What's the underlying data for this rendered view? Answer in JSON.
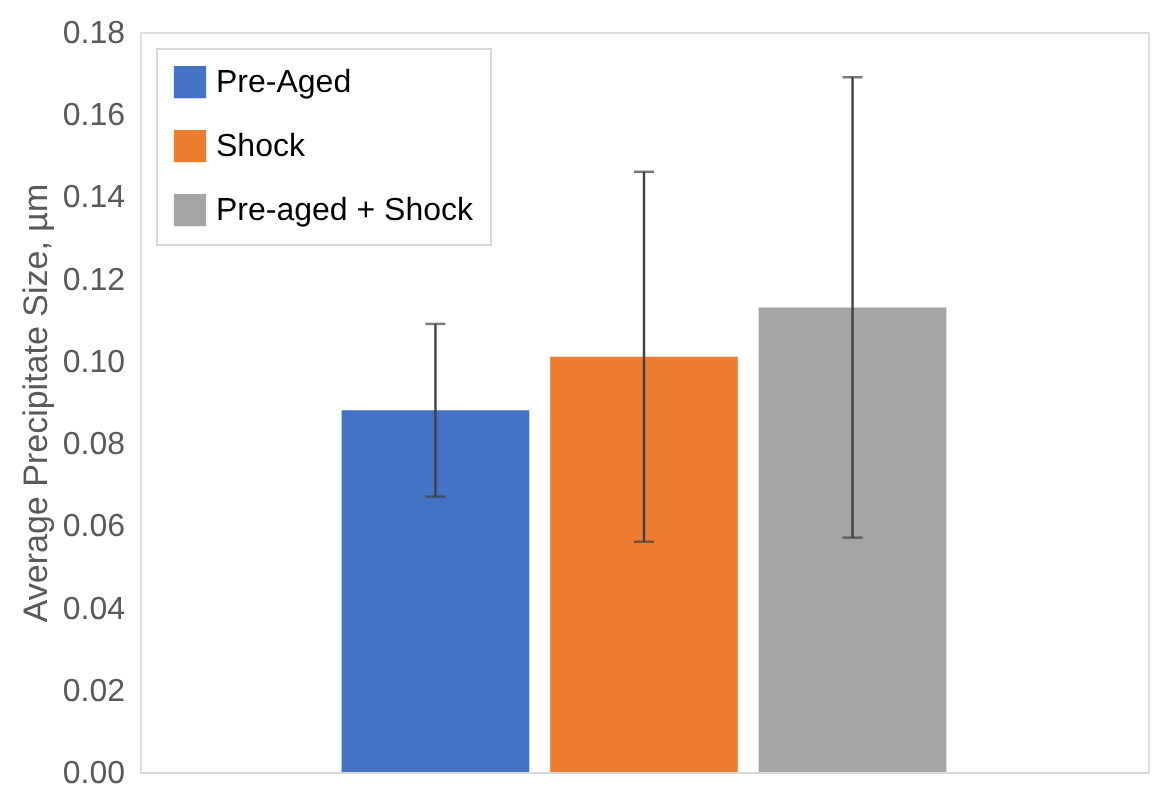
{
  "chart_data": {
    "type": "bar",
    "ylabel": "Average Precipitate Size, µm",
    "categories": [
      null
    ],
    "series": [
      {
        "name": "Pre-Aged",
        "color": "#4472c4",
        "values": [
          0.088
        ],
        "errors": [
          [
            0.067,
            0.109
          ]
        ]
      },
      {
        "name": "Shock",
        "color": "#ed7d31",
        "values": [
          0.101
        ],
        "errors": [
          [
            0.056,
            0.146
          ]
        ]
      },
      {
        "name": "Pre-aged + Shock",
        "color": "#a5a5a5",
        "values": [
          0.113
        ],
        "errors": [
          [
            0.057,
            0.169
          ]
        ]
      }
    ],
    "ylim": [
      0,
      0.18
    ],
    "yticks": [
      {
        "value": 0,
        "label": "0.00"
      },
      0.02,
      0.04,
      0.06,
      0.08,
      {
        "value": 0.1,
        "label": "0.10"
      },
      0.12,
      0.14,
      0.16,
      0.18
    ],
    "tick_labels": "y",
    "grid": false,
    "legend": "top left"
  }
}
